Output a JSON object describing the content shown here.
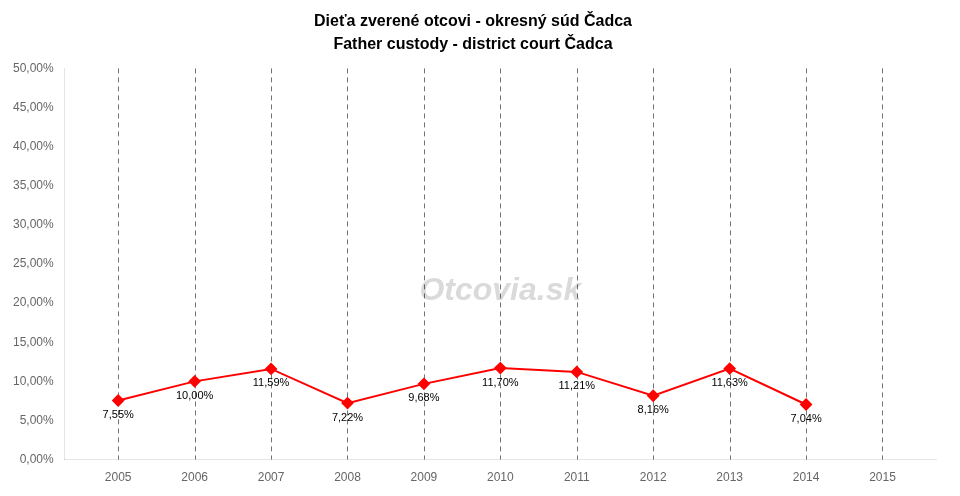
{
  "chart_data": {
    "type": "line",
    "title": "Dieťa zverené otcovi - okresný súd Čadca",
    "subtitle": "Father custody - district court Čadca",
    "x": [
      2005,
      2006,
      2007,
      2008,
      2009,
      2010,
      2011,
      2012,
      2013,
      2014
    ],
    "values": [
      7.55,
      10.0,
      11.59,
      7.22,
      9.68,
      11.7,
      11.21,
      8.16,
      11.63,
      7.04
    ],
    "value_labels": [
      "7,55%",
      "10,00%",
      "11,59%",
      "7,22%",
      "9,68%",
      "11,70%",
      "11,21%",
      "8,16%",
      "11,63%",
      "7,04%"
    ],
    "data_labels": true,
    "color": "#FF0000",
    "marker": "diamond",
    "grid": "x",
    "annotations": [
      "Otcovia.sk"
    ],
    "xlim": [
      2004.3,
      2015.7
    ],
    "xticks": [
      2005,
      2006,
      2007,
      2008,
      2009,
      2010,
      2011,
      2012,
      2013,
      2014,
      2015
    ],
    "ylim": [
      0,
      50
    ],
    "yticks": [
      {
        "value": 0,
        "label": "0,00%"
      },
      {
        "value": 5,
        "label": "5,00%"
      },
      {
        "value": 10,
        "label": "10,00%"
      },
      {
        "value": 15,
        "label": "15,00%"
      },
      {
        "value": 20,
        "label": "20,00%"
      },
      {
        "value": 25,
        "label": "25,00%"
      },
      {
        "value": 30,
        "label": "30,00%"
      },
      {
        "value": 35,
        "label": "35,00%"
      },
      {
        "value": 40,
        "label": "40,00%"
      },
      {
        "value": 45,
        "label": "45,00%"
      },
      {
        "value": 50,
        "label": "50,00%"
      }
    ]
  }
}
